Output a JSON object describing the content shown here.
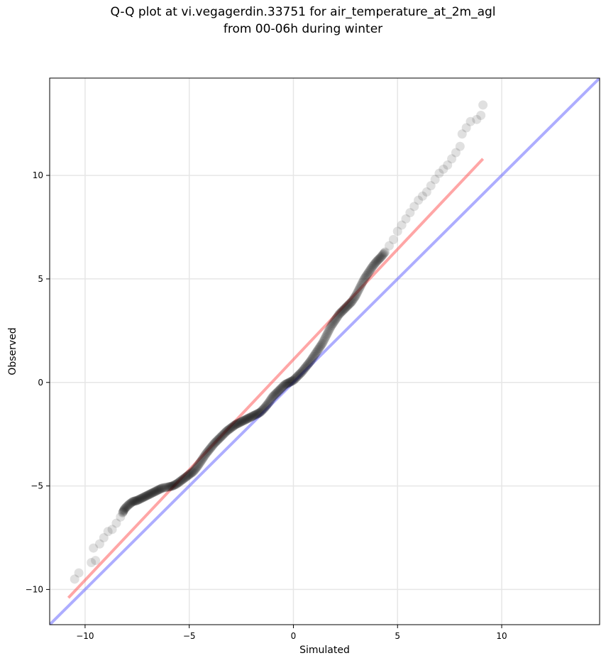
{
  "chart_data": {
    "type": "scatter",
    "title_line1": "Q-Q plot at vi.vegagerdin.33751 for air_temperature_at_2m_agl",
    "title_line2": "from 00-06h during winter",
    "xlabel": "Simulated",
    "ylabel": "Observed",
    "xlim": [
      -11.7,
      14.7
    ],
    "ylim": [
      -11.7,
      14.7
    ],
    "xticks": [
      -10,
      -5,
      0,
      5,
      10
    ],
    "yticks": [
      -10,
      -5,
      0,
      5,
      10
    ],
    "xtick_labels": [
      "−10",
      "−5",
      "0",
      "5",
      "10"
    ],
    "ytick_labels": [
      "−10",
      "−5",
      "0",
      "5",
      "10"
    ],
    "grid": true,
    "legend": false,
    "series": [
      {
        "kind": "points",
        "color": "#000000",
        "points": [
          [
            -10.5,
            -9.5
          ],
          [
            -10.3,
            -9.2
          ],
          [
            -9.7,
            -8.7
          ],
          [
            -9.5,
            -8.6
          ],
          [
            -9.6,
            -8.0
          ],
          [
            -9.3,
            -7.8
          ],
          [
            -9.1,
            -7.5
          ],
          [
            -8.9,
            -7.2
          ],
          [
            -8.7,
            -7.1
          ],
          [
            -8.5,
            -6.8
          ],
          [
            -8.3,
            -6.5
          ],
          [
            -8.2,
            -6.3
          ],
          [
            -8.1,
            -6.1
          ],
          [
            -7.9,
            -5.9
          ],
          [
            -7.7,
            -5.75
          ],
          [
            -7.5,
            -5.7
          ],
          [
            -7.3,
            -5.6
          ],
          [
            -7.1,
            -5.5
          ],
          [
            -6.9,
            -5.4
          ],
          [
            -6.7,
            -5.3
          ],
          [
            -6.5,
            -5.2
          ],
          [
            -6.3,
            -5.1
          ],
          [
            -6.0,
            -5.05
          ],
          [
            -5.8,
            -5.0
          ],
          [
            -5.6,
            -4.9
          ],
          [
            -5.4,
            -4.75
          ],
          [
            -5.2,
            -4.6
          ],
          [
            -5.0,
            -4.45
          ],
          [
            -4.8,
            -4.3
          ],
          [
            -4.6,
            -4.05
          ],
          [
            -4.4,
            -3.75
          ],
          [
            -4.2,
            -3.45
          ],
          [
            -4.0,
            -3.2
          ],
          [
            -3.8,
            -2.95
          ],
          [
            -3.6,
            -2.75
          ],
          [
            -3.4,
            -2.55
          ],
          [
            -3.2,
            -2.35
          ],
          [
            -3.0,
            -2.2
          ],
          [
            -2.8,
            -2.05
          ],
          [
            -2.6,
            -1.95
          ],
          [
            -2.4,
            -1.85
          ],
          [
            -2.2,
            -1.75
          ],
          [
            -2.0,
            -1.65
          ],
          [
            -1.8,
            -1.55
          ],
          [
            -1.6,
            -1.45
          ],
          [
            -1.4,
            -1.25
          ],
          [
            -1.2,
            -1.0
          ],
          [
            -1.0,
            -0.7
          ],
          [
            -0.8,
            -0.5
          ],
          [
            -0.6,
            -0.3
          ],
          [
            -0.4,
            -0.1
          ],
          [
            -0.2,
            0.0
          ],
          [
            0.0,
            0.1
          ],
          [
            0.2,
            0.3
          ],
          [
            0.4,
            0.5
          ],
          [
            0.6,
            0.75
          ],
          [
            0.8,
            1.0
          ],
          [
            1.0,
            1.3
          ],
          [
            1.2,
            1.6
          ],
          [
            1.4,
            1.9
          ],
          [
            1.6,
            2.3
          ],
          [
            1.8,
            2.7
          ],
          [
            2.0,
            3.0
          ],
          [
            2.2,
            3.3
          ],
          [
            2.4,
            3.5
          ],
          [
            2.6,
            3.7
          ],
          [
            2.8,
            3.9
          ],
          [
            3.0,
            4.2
          ],
          [
            3.2,
            4.6
          ],
          [
            3.4,
            5.0
          ],
          [
            3.6,
            5.3
          ],
          [
            3.8,
            5.6
          ],
          [
            4.0,
            5.85
          ],
          [
            4.2,
            6.05
          ],
          [
            4.4,
            6.3
          ],
          [
            4.6,
            6.6
          ],
          [
            4.8,
            6.9
          ],
          [
            5.0,
            7.3
          ],
          [
            5.2,
            7.6
          ],
          [
            5.4,
            7.9
          ],
          [
            5.6,
            8.2
          ],
          [
            5.8,
            8.5
          ],
          [
            6.0,
            8.8
          ],
          [
            6.2,
            9.0
          ],
          [
            6.4,
            9.2
          ],
          [
            6.6,
            9.5
          ],
          [
            6.8,
            9.8
          ],
          [
            7.0,
            10.1
          ],
          [
            7.2,
            10.3
          ],
          [
            7.4,
            10.5
          ],
          [
            7.6,
            10.8
          ],
          [
            7.8,
            11.1
          ],
          [
            8.0,
            11.4
          ],
          [
            8.1,
            12.0
          ],
          [
            8.3,
            12.3
          ],
          [
            8.5,
            12.6
          ],
          [
            8.8,
            12.7
          ],
          [
            9.0,
            12.9
          ],
          [
            9.1,
            13.4
          ]
        ]
      },
      {
        "kind": "line",
        "color": "#ff4d4d",
        "points": [
          [
            -10.8,
            -10.4
          ],
          [
            9.1,
            10.8
          ]
        ]
      },
      {
        "kind": "line",
        "color": "#5b5bff",
        "points": [
          [
            -11.7,
            -11.7
          ],
          [
            14.7,
            14.7
          ]
        ]
      }
    ]
  }
}
